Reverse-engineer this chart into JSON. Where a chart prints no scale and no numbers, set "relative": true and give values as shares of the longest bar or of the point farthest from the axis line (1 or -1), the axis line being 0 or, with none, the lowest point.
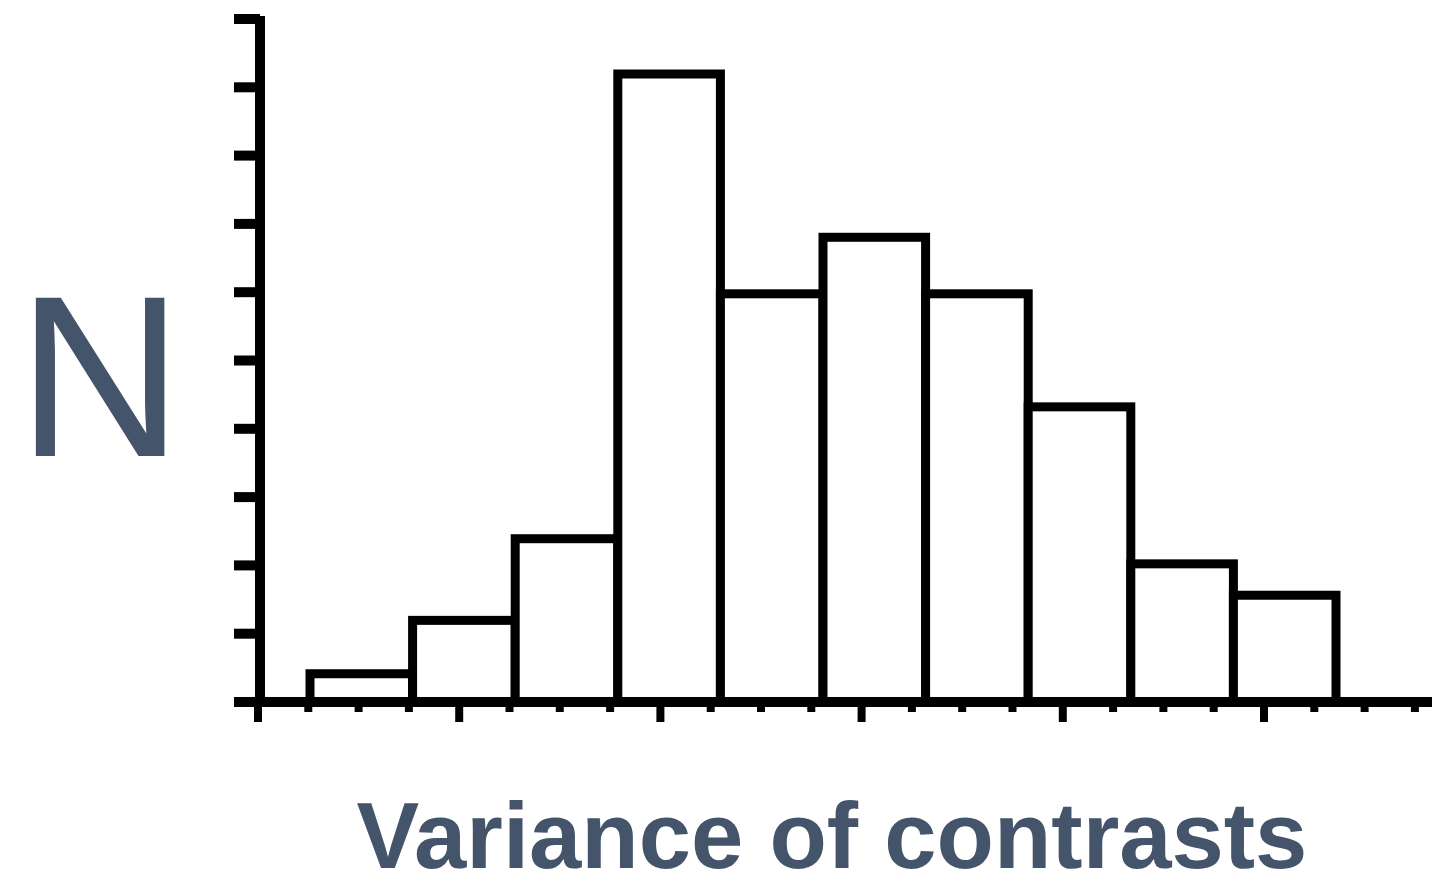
{
  "chart_data": {
    "type": "bar",
    "relative": true,
    "categories": [
      null,
      null,
      null,
      null,
      null,
      null,
      null,
      null,
      null,
      null
    ],
    "values": [
      0.045,
      0.13,
      0.26,
      1,
      0.65,
      0.74,
      0.65,
      0.47,
      0.22,
      0.17
    ],
    "color": "#ffffff",
    "xlabel": "Variance of contrasts",
    "ylabel": "N"
  }
}
